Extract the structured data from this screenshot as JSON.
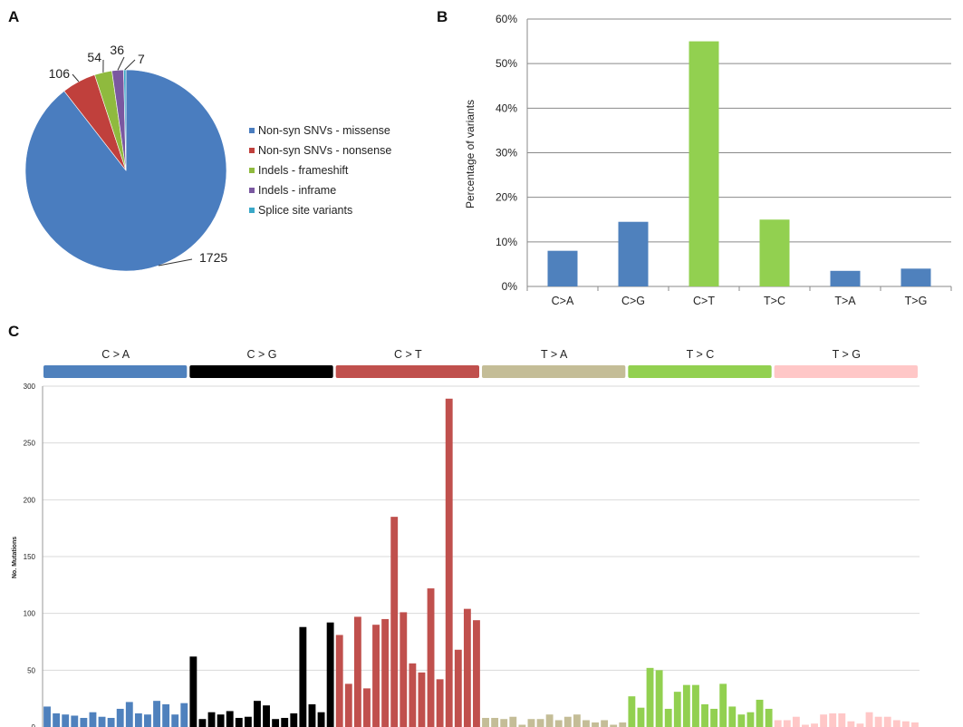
{
  "panels": {
    "a": "A",
    "b": "B",
    "c": "C"
  },
  "chart_data": [
    {
      "type": "pie",
      "panel": "A",
      "labels": [
        "Non-syn SNVs - missense",
        "Non-syn SNVs - nonsense",
        "Indels - frameshift",
        "Indels - inframe",
        "Splice site variants"
      ],
      "values": [
        1725,
        106,
        54,
        36,
        7
      ],
      "value_labels": [
        "1725",
        "106",
        "54",
        "36",
        "7"
      ],
      "colors": [
        "#4a7dbf",
        "#c0403c",
        "#8fba3e",
        "#7a58a0",
        "#3aa8c8"
      ],
      "legend_position": "right"
    },
    {
      "type": "bar",
      "panel": "B",
      "categories": [
        "C>A",
        "C>G",
        "C>T",
        "T>C",
        "T>A",
        "T>G"
      ],
      "values": [
        8,
        14.5,
        55,
        15,
        3.5,
        4
      ],
      "colors": [
        "#4f81bd",
        "#4f81bd",
        "#92d050",
        "#92d050",
        "#4f81bd",
        "#4f81bd"
      ],
      "ylabel": "Percentage of variants",
      "ylim": [
        0,
        60
      ],
      "yticks": [
        "0%",
        "10%",
        "20%",
        "30%",
        "40%",
        "50%",
        "60%"
      ],
      "grid": true
    },
    {
      "type": "bar",
      "panel": "C",
      "groups": [
        {
          "name": "C > A",
          "color": "#4f81bd",
          "values": [
            18,
            12,
            11,
            10,
            8,
            13,
            9,
            8,
            16,
            22,
            12,
            11,
            23,
            20,
            11,
            21
          ]
        },
        {
          "name": "C > G",
          "color": "#000000",
          "values": [
            62,
            7,
            13,
            11,
            14,
            8,
            9,
            23,
            19,
            7,
            8,
            12,
            88,
            20,
            13,
            92
          ]
        },
        {
          "name": "C > T",
          "color": "#c0504d",
          "values": [
            81,
            38,
            97,
            34,
            90,
            95,
            185,
            101,
            56,
            48,
            122,
            42,
            289,
            68,
            104,
            94
          ]
        },
        {
          "name": "T > A",
          "color": "#c4bd97",
          "values": [
            8,
            8,
            7,
            9,
            2,
            7,
            7,
            11,
            6,
            9,
            11,
            6,
            4,
            6,
            2,
            4
          ]
        },
        {
          "name": "T > C",
          "color": "#92d050",
          "values": [
            27,
            17,
            52,
            50,
            16,
            31,
            37,
            37,
            20,
            16,
            38,
            18,
            11,
            13,
            24,
            16
          ]
        },
        {
          "name": "T > G",
          "color": "#ffc7c7",
          "values": [
            6,
            6,
            9,
            2,
            3,
            11,
            12,
            12,
            5,
            3,
            13,
            9,
            9,
            6,
            5,
            4
          ]
        }
      ],
      "ylabel": "No. Mutations",
      "ylim": [
        0,
        300
      ],
      "yticks": [
        "0",
        "50",
        "100",
        "150",
        "200",
        "250",
        "300"
      ],
      "grid": true
    }
  ]
}
